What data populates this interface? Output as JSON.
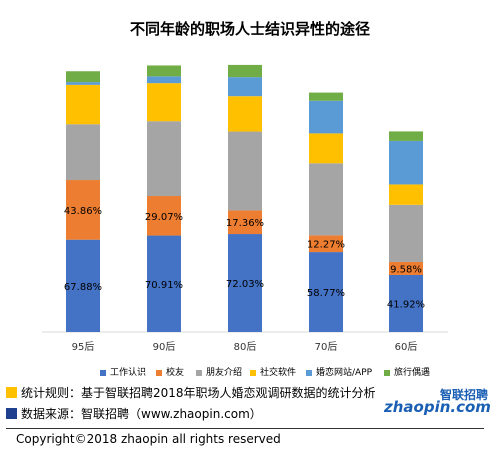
{
  "colors": {
    "工作认识": "#4472C4",
    "校友": "#ED7D31",
    "朋友介绍": "#A5A5A5",
    "社交软件": "#FFC000",
    "婚恋网站/APP": "#5B9BD5",
    "旅行偶遇": "#70AD47"
  },
  "chart_data": {
    "type": "bar",
    "stacked": true,
    "title": "不同年龄的职场人士结识异性的途径",
    "categories": [
      "95后",
      "90后",
      "80后",
      "70后",
      "60后"
    ],
    "ylim": [
      0,
      200
    ],
    "grid": false,
    "legend_position": "bottom",
    "series": [
      {
        "name": "工作认识",
        "values": [
          67.88,
          70.91,
          72.03,
          58.77,
          41.92
        ],
        "labels": [
          "67.88%",
          "70.91%",
          "72.03%",
          "58.77%",
          "41.92%"
        ]
      },
      {
        "name": "校友",
        "values": [
          43.86,
          29.07,
          17.36,
          12.27,
          9.58
        ],
        "labels": [
          "43.86%",
          "29.07%",
          "17.36%",
          "12.27%",
          "9.58%"
        ]
      },
      {
        "name": "朋友介绍",
        "values": [
          41,
          55,
          58,
          53,
          42
        ],
        "labels": [
          "",
          "",
          "",
          "",
          ""
        ]
      },
      {
        "name": "社交软件",
        "values": [
          29,
          28,
          26,
          22,
          15
        ],
        "labels": [
          "",
          "",
          "",
          "",
          ""
        ]
      },
      {
        "name": "婚恋网站/APP",
        "values": [
          2,
          5,
          14,
          24,
          32
        ],
        "labels": [
          "",
          "",
          "",
          "",
          ""
        ]
      },
      {
        "name": "旅行偶遇",
        "values": [
          8,
          8,
          9,
          6,
          7
        ],
        "labels": [
          "",
          "",
          "",
          "",
          ""
        ]
      }
    ]
  },
  "legend": [
    "工作认识",
    "校友",
    "朋友介绍",
    "社交软件",
    "婚恋网站/APP",
    "旅行偶遇"
  ],
  "footnotes": {
    "rule": "统计规则：基于智联招聘2018年职场人婚恋观调研数据的统计分析",
    "source": "数据来源：智联招聘（www.zhaopin.com）"
  },
  "logo": {
    "text": "zhaopin.com",
    "mark": "智联招聘"
  },
  "copyright": "Copyright©2018 zhaopin all rights reserved"
}
